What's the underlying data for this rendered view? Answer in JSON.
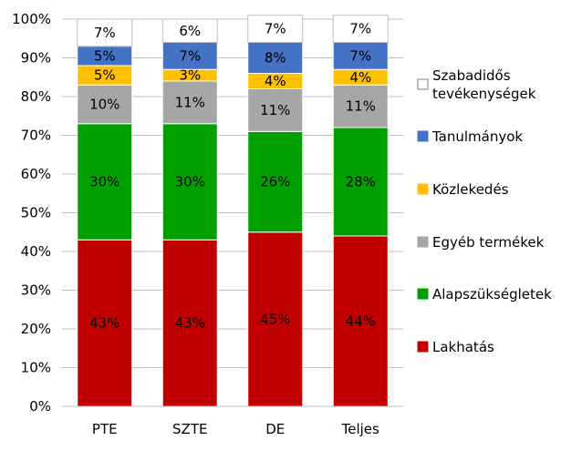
{
  "chart_data": {
    "type": "bar",
    "stacked": true,
    "percent": true,
    "categories": [
      "PTE",
      "SZTE",
      "DE",
      "Teljes"
    ],
    "series": [
      {
        "name": "Lakhatás",
        "color": "#C00000",
        "label_color": "#000000",
        "values": [
          43,
          43,
          45,
          44
        ],
        "labels": [
          "43%",
          "43%",
          "45%",
          "44%"
        ]
      },
      {
        "name": "Alapszükségletek",
        "color": "#00A000",
        "label_color": "#000000",
        "values": [
          30,
          30,
          26,
          28
        ],
        "labels": [
          "30%",
          "30%",
          "26%",
          "28%"
        ]
      },
      {
        "name": "Egyéb termékek",
        "color": "#A6A6A6",
        "label_color": "#000000",
        "values": [
          10,
          11,
          11,
          11
        ],
        "labels": [
          "10%",
          "11%",
          "11%",
          "11%"
        ]
      },
      {
        "name": "Közlekedés",
        "color": "#FFC000",
        "label_color": "#000000",
        "values": [
          5,
          3,
          4,
          4
        ],
        "labels": [
          "5%",
          "3%",
          "4%",
          "4%"
        ]
      },
      {
        "name": "Tanulmányok",
        "color": "#4472C4",
        "label_color": "#000000",
        "values": [
          5,
          7,
          8,
          7
        ],
        "labels": [
          "5%",
          "7%",
          "8%",
          "7%"
        ]
      },
      {
        "name": "Szabadidős tevékenységek",
        "name_lines": [
          "Szabadidős",
          "tevékenységek"
        ],
        "color": "#FFFFFF",
        "label_color": "#000000",
        "values": [
          7,
          6,
          7,
          7
        ],
        "labels": [
          "7%",
          "6%",
          "7%",
          "7%"
        ]
      }
    ],
    "ylim": [
      0,
      100
    ],
    "yticks": [
      "0%",
      "10%",
      "20%",
      "30%",
      "40%",
      "50%",
      "60%",
      "70%",
      "80%",
      "90%",
      "100%"
    ],
    "grid": true,
    "legend_position": "right",
    "legend_order": [
      "Szabadidős tevékenységek",
      "Tanulmányok",
      "Közlekedés",
      "Egyéb termékek",
      "Alapszükségletek",
      "Lakhatás"
    ]
  }
}
